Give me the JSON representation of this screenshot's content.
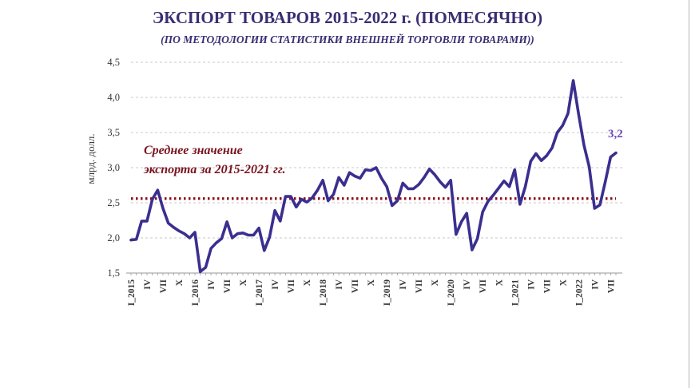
{
  "title": "ЭКСПОРТ ТОВАРОВ 2015-2022 г. (ПОМЕСЯЧНО)",
  "subtitle": "(ПО МЕТОДОЛОГИИ СТАТИСТИКИ ВНЕШНЕЙ ТОРГОВЛИ ТОВАРАМИ))",
  "colors": {
    "title": "#3b2d72",
    "line": "#3a2f8f",
    "average": "#8b0d1a",
    "annotation": "#7a1420",
    "end_label": "#6b4bb8"
  },
  "chart_data": {
    "type": "line",
    "ylabel": "млрд. долл.",
    "ylim": [
      1.5,
      4.5
    ],
    "yticks": [
      "1,5",
      "2,0",
      "2,5",
      "3,0",
      "3,5",
      "4,0",
      "4,5"
    ],
    "grid": "horizontal dashed",
    "x_tick_labels": [
      "I_2015",
      "IV",
      "VII",
      "X",
      "I_2016",
      "IV",
      "VII",
      "X",
      "I_2017",
      "IV",
      "VII",
      "X",
      "I_2018",
      "IV",
      "VII",
      "X",
      "I_2019",
      "IV",
      "VII",
      "X",
      "I_2020",
      "IV",
      "VII",
      "X",
      "I_2021",
      "IV",
      "VII",
      "X",
      "I_2022",
      "IV",
      "VII"
    ],
    "series": [
      {
        "values": [
          1.97,
          1.98,
          2.24,
          2.24,
          2.55,
          2.68,
          2.42,
          2.21,
          2.15,
          2.1,
          2.06,
          2.0,
          2.08,
          1.52,
          1.58,
          1.85,
          1.93,
          1.99,
          2.23,
          2.0,
          2.06,
          2.07,
          2.04,
          2.04,
          2.14,
          1.82,
          2.01,
          2.39,
          2.24,
          2.59,
          2.59,
          2.44,
          2.55,
          2.51,
          2.57,
          2.68,
          2.82,
          2.53,
          2.62,
          2.86,
          2.75,
          2.93,
          2.88,
          2.85,
          2.97,
          2.96,
          3.0,
          2.85,
          2.73,
          2.46,
          2.53,
          2.78,
          2.7,
          2.7,
          2.76,
          2.86,
          2.98,
          2.9,
          2.8,
          2.72,
          2.82,
          2.05,
          2.23,
          2.35,
          1.83,
          1.99,
          2.37,
          2.52,
          2.61,
          2.71,
          2.81,
          2.73,
          2.97,
          2.48,
          2.73,
          3.09,
          3.2,
          3.1,
          3.17,
          3.28,
          3.5,
          3.6,
          3.77,
          4.24,
          3.76,
          3.32,
          3.01,
          2.42,
          2.47,
          2.8,
          3.15,
          3.21
        ]
      }
    ],
    "average": {
      "value": 2.56,
      "label_line1": "Среднее значение",
      "label_line2": "экспорта за 2015-2021 гг."
    },
    "end_label": "3,2"
  }
}
